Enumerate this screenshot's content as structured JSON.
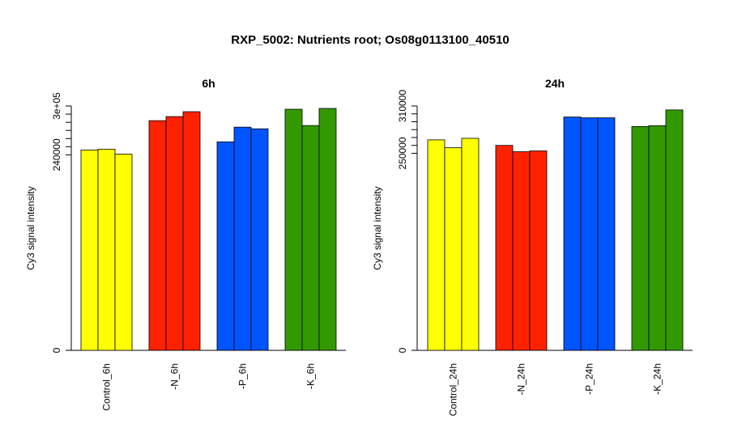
{
  "page_title": "RXP_5002: Nutrients root; Os08g0113100_40510",
  "chart_data": [
    {
      "type": "bar",
      "title": "6h",
      "ylabel": "Cy3 signal intensity",
      "xlabel": "",
      "ylim": [
        0,
        300000
      ],
      "y_tick_labels": [
        {
          "value": 0,
          "label": "0"
        },
        {
          "value": 240000,
          "label": "240000"
        },
        {
          "value": 300000,
          "label": "3e+05"
        }
      ],
      "y_minor_ticks": [
        250000,
        260000,
        270000,
        280000,
        290000
      ],
      "groups": [
        {
          "label": "Control_6h",
          "color": "#ffff00",
          "values": [
            246000,
            247000,
            241000
          ]
        },
        {
          "label": "-N_6h",
          "color": "#ff2200",
          "values": [
            282000,
            287000,
            293000
          ]
        },
        {
          "label": "-P_6h",
          "color": "#0055ff",
          "values": [
            256000,
            274000,
            272000
          ]
        },
        {
          "label": "-K_6h",
          "color": "#339900",
          "values": [
            296000,
            276000,
            297000
          ]
        }
      ]
    },
    {
      "type": "bar",
      "title": "24h",
      "ylabel": "Cy3 signal intensity",
      "xlabel": "",
      "ylim": [
        0,
        310000
      ],
      "y_tick_labels": [
        {
          "value": 0,
          "label": "0"
        },
        {
          "value": 250000,
          "label": "250000"
        },
        {
          "value": 310000,
          "label": "310000"
        }
      ],
      "y_minor_ticks": [
        260000,
        270000,
        280000,
        290000,
        300000
      ],
      "groups": [
        {
          "label": "Control_24h",
          "color": "#ffff00",
          "values": [
            267000,
            257000,
            269000
          ]
        },
        {
          "label": "-N_24h",
          "color": "#ff2200",
          "values": [
            260000,
            252000,
            253000
          ]
        },
        {
          "label": "-P_24h",
          "color": "#0055ff",
          "values": [
            296000,
            295000,
            295000
          ]
        },
        {
          "label": "-K_24h",
          "color": "#339900",
          "values": [
            284000,
            285000,
            305000
          ]
        }
      ]
    }
  ]
}
